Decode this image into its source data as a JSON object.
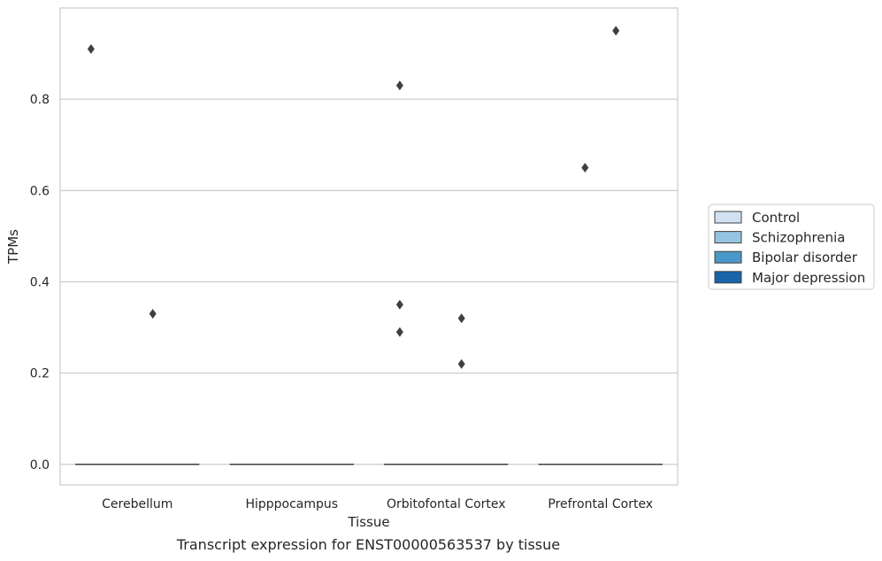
{
  "chart_data": {
    "type": "box",
    "title": "",
    "xlabel": "Tissue",
    "ylabel": "TPMs",
    "caption": "Transcript expression for ENST00000563537 by tissue",
    "categories": [
      "Cerebellum",
      "Hipppocampus",
      "Orbitofontal Cortex",
      "Prefrontal Cortex"
    ],
    "ylim": [
      -0.045,
      1.0
    ],
    "yticks": [
      0.0,
      0.2,
      0.4,
      0.6,
      0.8
    ],
    "ytick_labels": [
      "0.0",
      "0.2",
      "0.4",
      "0.6",
      "0.8"
    ],
    "grid": true,
    "legend_position": "right",
    "series": [
      {
        "name": "Control",
        "color": "#d0e1f2",
        "boxes": [
          {
            "median": 0,
            "q1": 0,
            "q3": 0,
            "outliers": [
              0.91
            ]
          },
          {
            "median": 0,
            "q1": 0,
            "q3": 0,
            "outliers": []
          },
          {
            "median": 0,
            "q1": 0,
            "q3": 0,
            "outliers": [
              0.83,
              0.35,
              0.29
            ]
          },
          {
            "median": 0,
            "q1": 0,
            "q3": 0,
            "outliers": []
          }
        ]
      },
      {
        "name": "Schizophrenia",
        "color": "#94c4df",
        "boxes": [
          {
            "median": 0,
            "q1": 0,
            "q3": 0,
            "outliers": []
          },
          {
            "median": 0,
            "q1": 0,
            "q3": 0,
            "outliers": []
          },
          {
            "median": 0,
            "q1": 0,
            "q3": 0,
            "outliers": []
          },
          {
            "median": 0,
            "q1": 0,
            "q3": 0,
            "outliers": [
              0.65
            ]
          }
        ]
      },
      {
        "name": "Bipolar disorder",
        "color": "#4a98c9",
        "boxes": [
          {
            "median": 0,
            "q1": 0,
            "q3": 0,
            "outliers": [
              0.33
            ]
          },
          {
            "median": 0,
            "q1": 0,
            "q3": 0,
            "outliers": []
          },
          {
            "median": 0,
            "q1": 0,
            "q3": 0,
            "outliers": [
              0.32,
              0.22
            ]
          },
          {
            "median": 0,
            "q1": 0,
            "q3": 0,
            "outliers": [
              0.95
            ]
          }
        ]
      },
      {
        "name": "Major depression",
        "color": "#1764ab",
        "boxes": [
          {
            "median": 0,
            "q1": 0,
            "q3": 0,
            "outliers": []
          },
          {
            "median": 0,
            "q1": 0,
            "q3": 0,
            "outliers": []
          },
          {
            "median": 0,
            "q1": 0,
            "q3": 0,
            "outliers": []
          },
          {
            "median": 0,
            "q1": 0,
            "q3": 0,
            "outliers": []
          }
        ]
      }
    ]
  }
}
